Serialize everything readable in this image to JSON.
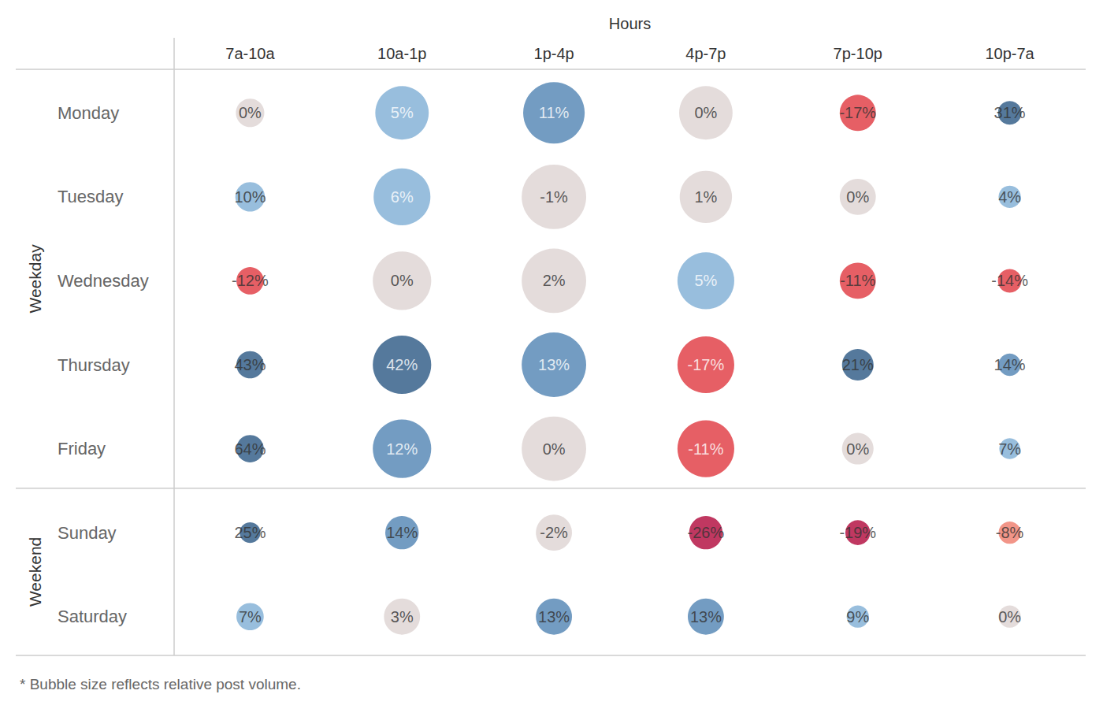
{
  "chart_data": {
    "type": "scatter",
    "x_label": "Hours",
    "categories": [
      "7a-10a",
      "10a-1p",
      "1p-4p",
      "4p-7p",
      "7p-10p",
      "10p-7a"
    ],
    "groups": [
      {
        "name": "Weekday",
        "rows": [
          "Monday",
          "Tuesday",
          "Wednesday",
          "Thursday",
          "Friday"
        ]
      },
      {
        "name": "Weekend",
        "rows": [
          "Sunday",
          "Saturday"
        ]
      }
    ],
    "values": [
      [
        0,
        5,
        11,
        0,
        -17,
        31
      ],
      [
        10,
        6,
        -1,
        1,
        0,
        4
      ],
      [
        -12,
        0,
        2,
        5,
        -11,
        -14
      ],
      [
        43,
        42,
        13,
        -17,
        21,
        14
      ],
      [
        64,
        12,
        0,
        -11,
        0,
        7
      ],
      [
        25,
        14,
        -2,
        -26,
        -19,
        -8
      ],
      [
        7,
        3,
        13,
        13,
        9,
        0
      ]
    ],
    "value_labels": [
      [
        "0%",
        "5%",
        "11%",
        "0%",
        "-17%",
        "31%"
      ],
      [
        "10%",
        "6%",
        "-1%",
        "1%",
        "0%",
        "4%"
      ],
      [
        "-12%",
        "0%",
        "2%",
        "5%",
        "-11%",
        "-14%"
      ],
      [
        "43%",
        "42%",
        "13%",
        "-17%",
        "21%",
        "14%"
      ],
      [
        "64%",
        "12%",
        "0%",
        "-11%",
        "0%",
        "7%"
      ],
      [
        "25%",
        "14%",
        "-2%",
        "-26%",
        "-19%",
        "-8%"
      ],
      [
        "7%",
        "3%",
        "13%",
        "13%",
        "9%",
        "0%"
      ]
    ],
    "sizes": [
      [
        13,
        46,
        61,
        46,
        21,
        9
      ],
      [
        14,
        52,
        67,
        44,
        21,
        8
      ],
      [
        12,
        55,
        67,
        52,
        21,
        9
      ],
      [
        12,
        55,
        67,
        52,
        16,
        8
      ],
      [
        12,
        55,
        67,
        52,
        16,
        7
      ],
      [
        7,
        18,
        21,
        18,
        10,
        8
      ],
      [
        12,
        21,
        21,
        21,
        8,
        8
      ]
    ],
    "colors": [
      [
        "#ddd3d2",
        "#7eaed4",
        "#5083b3",
        "#ddd3d2",
        "#e0373f",
        "#2a5783"
      ],
      [
        "#7eaed4",
        "#7eaed4",
        "#ddd3d2",
        "#ddd3d2",
        "#ddd3d2",
        "#7eaed4"
      ],
      [
        "#e0373f",
        "#ddd3d2",
        "#ddd3d2",
        "#7eaed4",
        "#e0373f",
        "#e0373f"
      ],
      [
        "#2a5783",
        "#2a5783",
        "#5083b3",
        "#e0373f",
        "#2a5783",
        "#5083b3"
      ],
      [
        "#2a5783",
        "#5083b3",
        "#ddd3d2",
        "#e0373f",
        "#ddd3d2",
        "#7eaed4"
      ],
      [
        "#2a5783",
        "#5083b3",
        "#ddd3d2",
        "#b0063a",
        "#b0063a",
        "#ef7b6a"
      ],
      [
        "#7eaed4",
        "#ddd3d2",
        "#5083b3",
        "#5083b3",
        "#7eaed4",
        "#ddd3d2"
      ]
    ],
    "data_labels": true,
    "grid": false,
    "annotation": "* Bubble size reflects relative post volume."
  }
}
